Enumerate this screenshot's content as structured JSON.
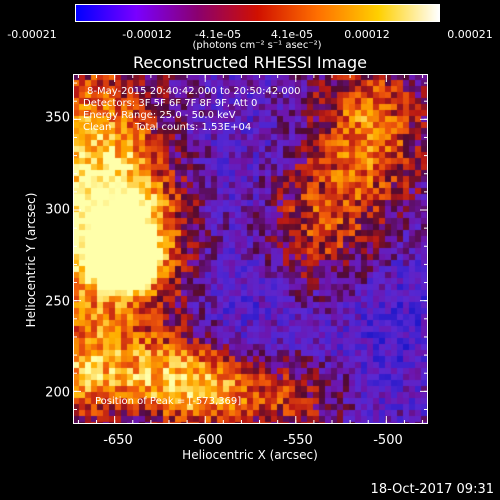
{
  "colorbar": {
    "ticks": [
      "-0.00021",
      "-0.00012",
      "-4.1e-05",
      "4.1e-05",
      "0.00012",
      "0.00021"
    ],
    "unit_label": "(photons cm⁻² s⁻¹ asec⁻²)",
    "colors": [
      "#0000ff",
      "#7a00ff",
      "#8a0070",
      "#d01000",
      "#ff7000",
      "#ffd000",
      "#ffffff"
    ]
  },
  "chart_data": {
    "type": "heatmap",
    "title": "Reconstructed RHESSI Image",
    "xlabel": "Heliocentric X (arcsec)",
    "ylabel": "Heliocentric Y (arcsec)",
    "xlim": [
      -673,
      -477
    ],
    "ylim": [
      182,
      375
    ],
    "x_ticks": [
      "-650",
      "-600",
      "-550",
      "-500"
    ],
    "y_ticks": [
      "350",
      "300",
      "250",
      "200"
    ],
    "x_tick_values": [
      -650,
      -600,
      -550,
      -500
    ],
    "y_tick_values": [
      350,
      300,
      250,
      200
    ],
    "peak": [
      -573,
      369
    ],
    "annotations": {
      "time": "8-May-2015 20:40:42.000 to 20:50:42.000",
      "detectors": "Detectors: 3F 5F 6F 7F 8F 9F, Att 0",
      "energy": "Energy Range: 25.0 - 50.0 keV",
      "method": "Clean",
      "counts": "Total counts: 1.53E+04",
      "peak_label": "Position of Peak = [-573,369]"
    }
  },
  "footer": {
    "date": "18-Oct-2017 09:31"
  }
}
